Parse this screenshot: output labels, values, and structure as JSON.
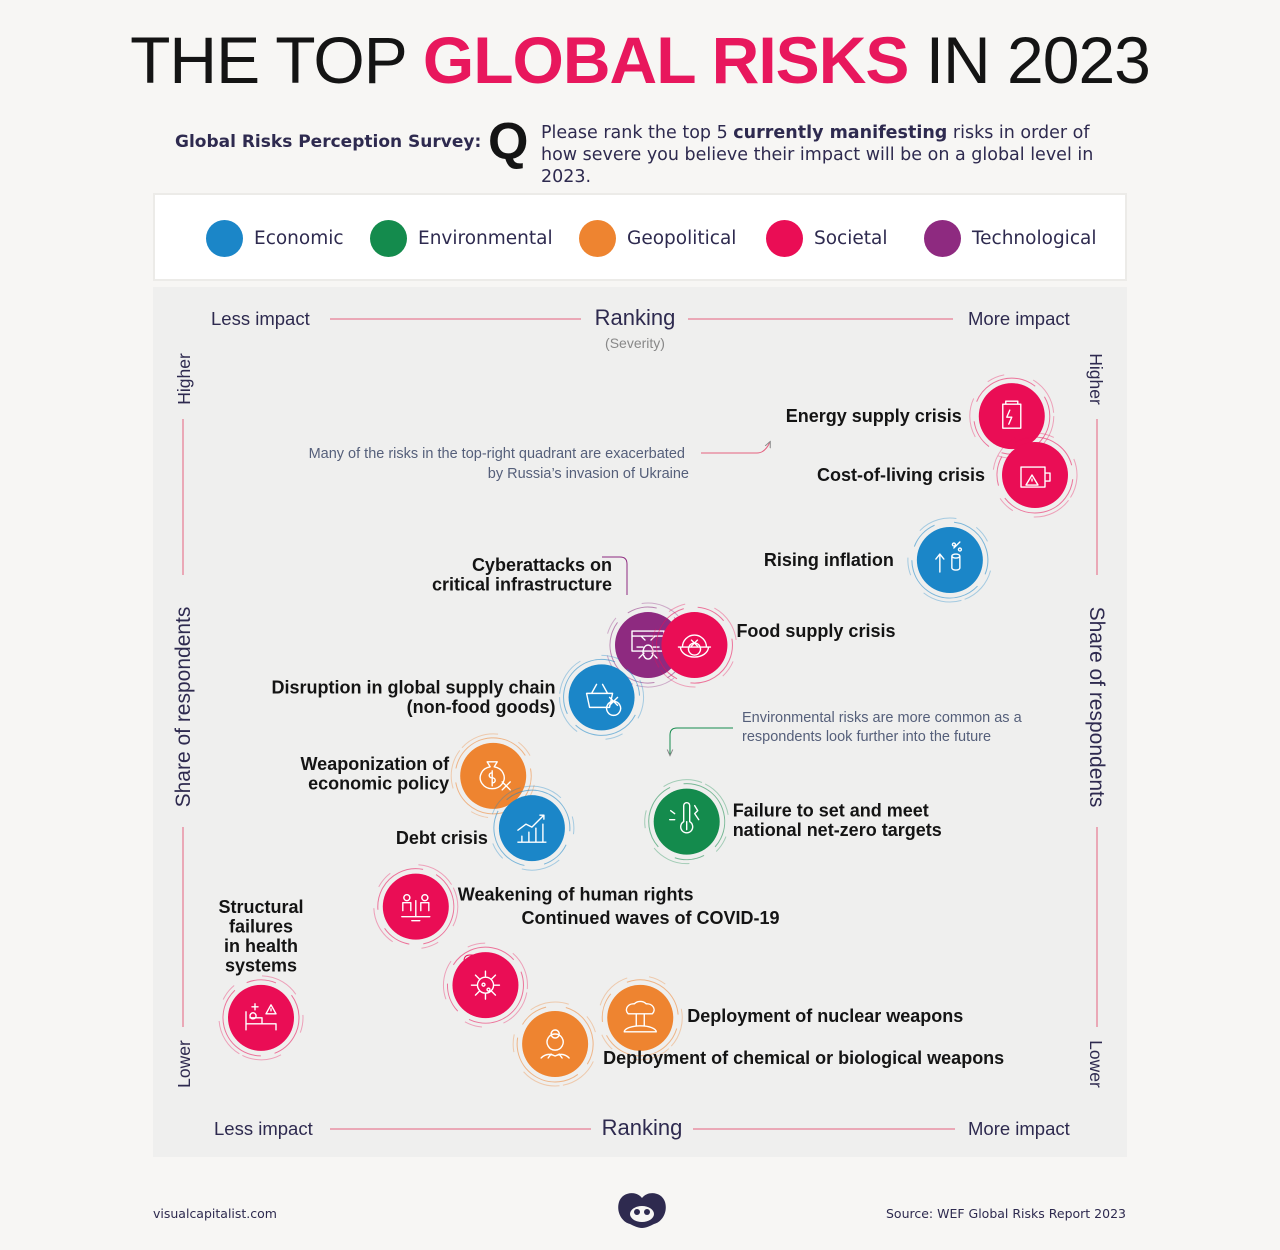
{
  "header": {
    "title_part1": "THE TOP",
    "title_highlight": "GLOBAL RISKS",
    "title_part2": "IN 2023",
    "survey_label": "Global Risks Perception Survey:",
    "q_mark": "Q",
    "question_pre": "Please rank the top 5 ",
    "question_bold": "currently manifesting",
    "question_post": " risks in order of how severe you believe their impact will be on a global level in 2023."
  },
  "legend": [
    {
      "label": "Economic",
      "color": "#1b86c8"
    },
    {
      "label": "Environmental",
      "color": "#148b4d"
    },
    {
      "label": "Geopolitical",
      "color": "#ee8430"
    },
    {
      "label": "Societal",
      "color": "#ea0d55"
    },
    {
      "label": "Technological",
      "color": "#8e2a80"
    }
  ],
  "chart_data": {
    "type": "scatter",
    "xlabel": "Ranking",
    "xlabel_sub": "(Severity)",
    "xlabel_bottom": "Ranking",
    "x_low_label": "Less impact",
    "x_high_label": "More impact",
    "ylabel": "Share of respondents",
    "y_low_label": "Lower",
    "y_high_label": "Higher",
    "axis_note": "relative qualitative positions: x 0 = less impact, 1 = more impact; y 0 = lower share, 1 = higher share",
    "points": [
      {
        "name": "Energy supply crisis",
        "category": "Societal",
        "icon": "power-icon",
        "x": 0.97,
        "y": 0.96
      },
      {
        "name": "Cost-of-living crisis",
        "category": "Societal",
        "icon": "wallet-alert-icon",
        "x": 1.0,
        "y": 0.87
      },
      {
        "name": "Rising inflation",
        "category": "Economic",
        "icon": "inflation-coins-icon",
        "x": 0.89,
        "y": 0.74
      },
      {
        "name": "Cyberattacks on critical infrastructure",
        "category": "Technological",
        "icon": "cyber-bug-icon",
        "x": 0.5,
        "y": 0.61
      },
      {
        "name": "Food supply crisis",
        "category": "Societal",
        "icon": "food-bowl-icon",
        "x": 0.56,
        "y": 0.61
      },
      {
        "name": "Disruption in global supply chain (non-food goods)",
        "category": "Economic",
        "icon": "basket-x-icon",
        "x": 0.44,
        "y": 0.53
      },
      {
        "name": "Weaponization of economic policy",
        "category": "Geopolitical",
        "icon": "money-bag-x-icon",
        "x": 0.3,
        "y": 0.41
      },
      {
        "name": "Debt crisis",
        "category": "Economic",
        "icon": "debt-chart-icon",
        "x": 0.35,
        "y": 0.33
      },
      {
        "name": "Failure to set and meet national net-zero targets",
        "category": "Environmental",
        "icon": "thermometer-icon",
        "x": 0.55,
        "y": 0.34
      },
      {
        "name": "Weakening of human rights",
        "category": "Societal",
        "icon": "people-scale-icon",
        "x": 0.2,
        "y": 0.21
      },
      {
        "name": "Continued waves of COVID-19",
        "category": "Societal",
        "icon": "virus-icon",
        "x": 0.29,
        "y": 0.09
      },
      {
        "name": "Deployment of nuclear weapons",
        "category": "Geopolitical",
        "icon": "mushroom-cloud-icon",
        "x": 0.49,
        "y": 0.04
      },
      {
        "name": "Deployment of chemical or biological weapons",
        "category": "Geopolitical",
        "icon": "biohazard-icon",
        "x": 0.38,
        "y": 0.0
      },
      {
        "name": "Structural failures in health systems",
        "category": "Societal",
        "icon": "hospital-bed-icon",
        "x": 0.0,
        "y": 0.04
      }
    ],
    "annotations": [
      "Many of the risks in the top-right quadrant are exacerbated by Russia’s invasion of Ukraine",
      "Environmental risks are more common as a respondents look further into the future"
    ]
  },
  "footer": {
    "site": "visualcapitalist.com",
    "source": "Source: WEF Global Risks Report 2023"
  },
  "styles": {
    "accent": "#e8175d",
    "text_dark": "#2e2a4f",
    "axis_line": "#e4607f"
  }
}
